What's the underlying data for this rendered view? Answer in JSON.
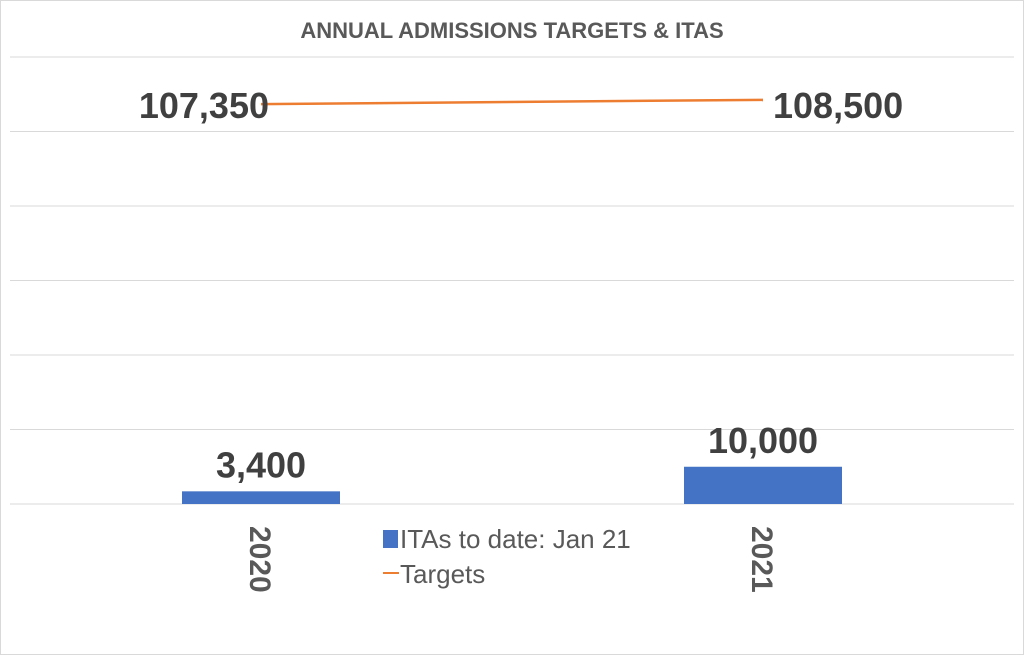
{
  "chart_data": {
    "type": "bar",
    "title": "ANNUAL ADMISSIONS TARGETS & ITAS",
    "categories": [
      "2020",
      "2021"
    ],
    "series": [
      {
        "name": "ITAs to date: Jan 21",
        "type": "bar",
        "color": "#4472c4",
        "values": [
          3400,
          10000
        ],
        "labels": [
          "3,400",
          "10,000"
        ]
      },
      {
        "name": "Targets",
        "type": "line",
        "color": "#ed7d31",
        "values": [
          107350,
          108500
        ],
        "labels": [
          "107,350",
          "108,500"
        ]
      }
    ],
    "xlabel": "",
    "ylabel": "",
    "ylim": [
      0,
      120000
    ],
    "ytick_step": 20000,
    "grid": true,
    "legend": "bottom-center"
  }
}
